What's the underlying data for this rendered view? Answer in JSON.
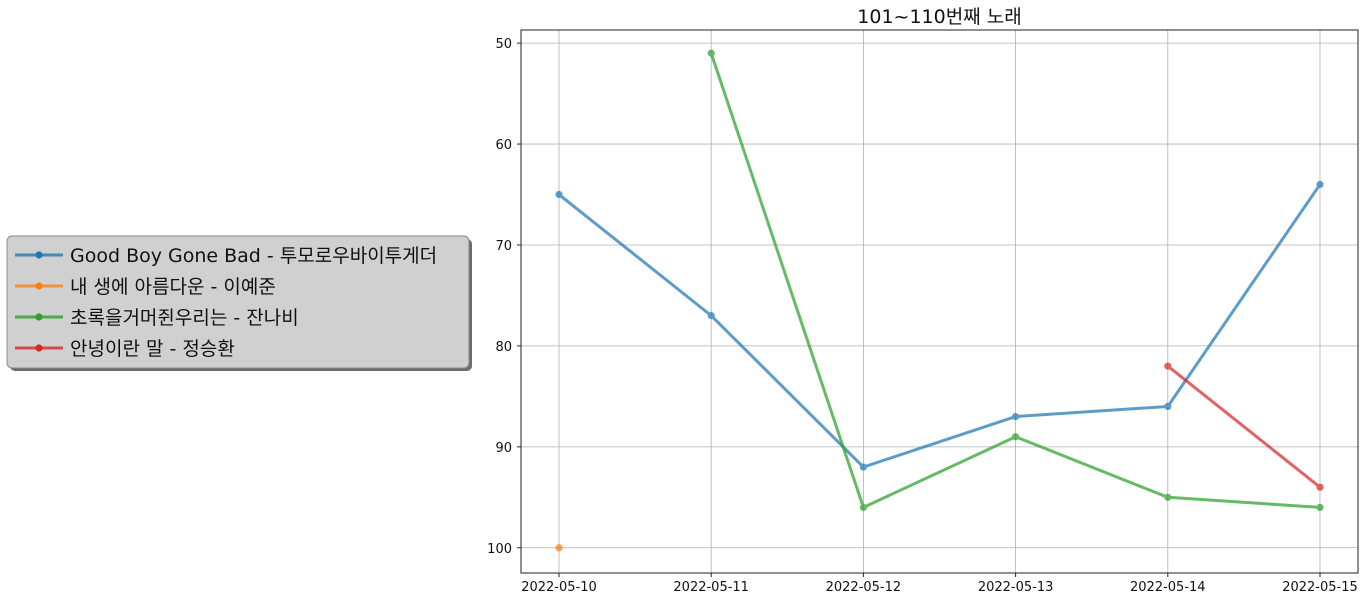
{
  "chart_data": {
    "type": "line",
    "title": "101~110번째 노래",
    "xlabel": "",
    "ylabel": "",
    "x": [
      "2022-05-10",
      "2022-05-11",
      "2022-05-12",
      "2022-05-13",
      "2022-05-14",
      "2022-05-15"
    ],
    "ylim": [
      102.5,
      48.7
    ],
    "y_inverted": true,
    "yticks": [
      50,
      60,
      70,
      80,
      90,
      100
    ],
    "grid": true,
    "legend_position": "left",
    "series": [
      {
        "name": "Good Boy Gone Bad - 투모로우바이투게더",
        "color": "#1f77b4",
        "values": [
          65,
          77,
          92,
          87,
          86,
          64
        ]
      },
      {
        "name": "내 생에 아름다운 - 이예준",
        "color": "#ff7f0e",
        "values": [
          100,
          null,
          null,
          null,
          null,
          null
        ]
      },
      {
        "name": "초록을거머쥔우리는 - 잔나비",
        "color": "#2ca02c",
        "values": [
          null,
          51,
          96,
          89,
          95,
          96
        ]
      },
      {
        "name": "안녕이란 말 - 정승환",
        "color": "#d62728",
        "values": [
          null,
          null,
          null,
          null,
          82,
          94
        ]
      }
    ]
  }
}
